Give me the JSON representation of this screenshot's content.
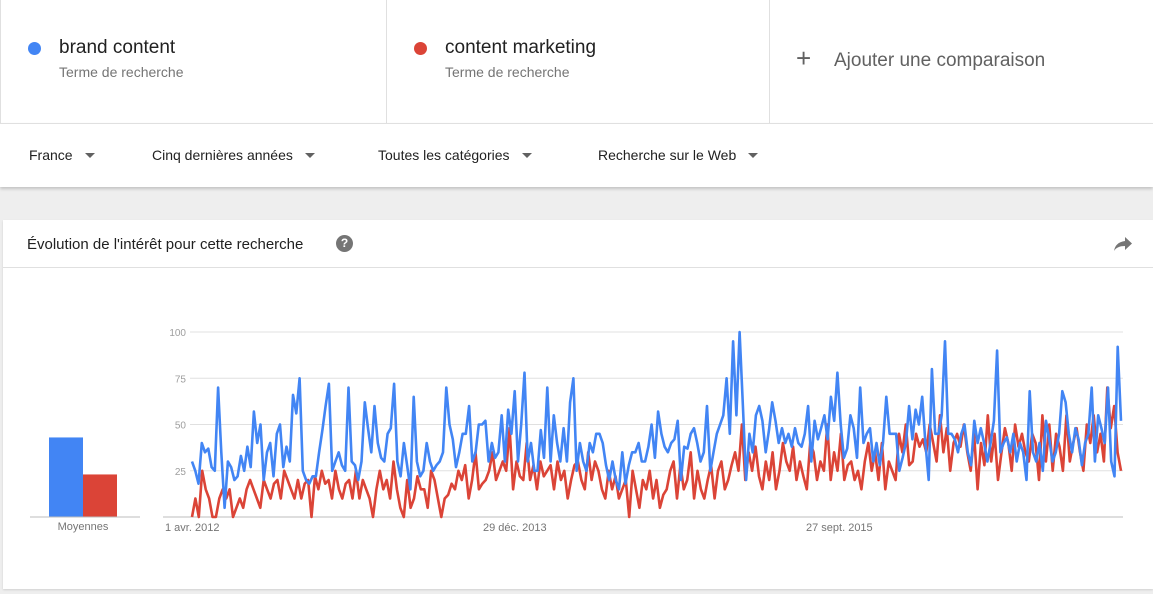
{
  "terms": [
    {
      "name": "brand content",
      "sub": "Terme de recherche",
      "color": "#4285f4"
    },
    {
      "name": "content marketing",
      "sub": "Terme de recherche",
      "color": "#db4437"
    }
  ],
  "add_comparison": "Ajouter une comparaison",
  "filters": {
    "region": "France",
    "period": "Cinq dernières années",
    "category": "Toutes les catégories",
    "search_type": "Recherche sur le Web"
  },
  "card": {
    "title": "Évolution de l'intérêt pour cette recherche",
    "help_icon": "help-icon",
    "share_icon": "share-icon"
  },
  "chart_data": {
    "type": "line",
    "ylim": [
      0,
      100
    ],
    "yticks": [
      "100",
      "75",
      "50",
      "25"
    ],
    "xticks": [
      "1 avr. 2012",
      "29 déc. 2013",
      "27 sept. 2015"
    ],
    "averages_label": "Moyennes",
    "averages": [
      {
        "name": "brand content",
        "value": 43,
        "color": "#4285f4"
      },
      {
        "name": "content marketing",
        "value": 23,
        "color": "#db4437"
      }
    ],
    "series": [
      {
        "name": "brand content",
        "color": "#4285f4",
        "values": [
          30,
          25,
          18,
          40,
          35,
          37,
          27,
          25,
          70,
          35,
          5,
          30,
          27,
          20,
          22,
          33,
          25,
          38,
          27,
          57,
          40,
          50,
          20,
          35,
          40,
          22,
          45,
          50,
          27,
          38,
          30,
          66,
          56,
          75,
          25,
          20,
          18,
          22,
          22,
          35,
          47,
          60,
          72,
          25,
          30,
          35,
          28,
          25,
          70,
          30,
          28,
          20,
          30,
          62,
          48,
          35,
          60,
          40,
          32,
          30,
          45,
          48,
          72,
          30,
          22,
          40,
          28,
          15,
          65,
          30,
          22,
          25,
          40,
          30,
          25,
          28,
          30,
          35,
          70,
          50,
          42,
          27,
          35,
          45,
          45,
          60,
          30,
          35,
          50,
          50,
          52,
          30,
          40,
          32,
          35,
          55,
          30,
          58,
          45,
          68,
          30,
          50,
          78,
          30,
          40,
          25,
          25,
          47,
          32,
          70,
          30,
          55,
          40,
          30,
          48,
          30,
          62,
          75,
          25,
          40,
          30,
          25,
          40,
          35,
          45,
          45,
          40,
          28,
          20,
          30,
          20,
          15,
          35,
          18,
          28,
          35,
          35,
          40,
          30,
          30,
          38,
          50,
          32,
          57,
          45,
          38,
          35,
          40,
          42,
          52,
          20,
          38,
          37,
          45,
          48,
          40,
          30,
          35,
          60,
          25,
          35,
          45,
          50,
          55,
          75,
          45,
          95,
          55,
          100,
          60,
          20,
          45,
          35,
          55,
          60,
          52,
          35,
          47,
          62,
          52,
          40,
          48,
          40,
          45,
          38,
          48,
          40,
          38,
          45,
          60,
          30,
          52,
          42,
          48,
          55,
          42,
          65,
          52,
          78,
          50,
          32,
          37,
          55,
          48,
          32,
          70,
          40,
          45,
          48,
          30,
          40,
          28,
          40,
          65,
          45,
          45,
          45,
          25,
          32,
          40,
          60,
          42,
          58,
          50,
          65,
          40,
          20,
          80,
          45,
          45,
          55,
          95,
          45,
          45,
          42,
          35,
          45,
          50,
          35,
          28,
          52,
          40,
          48,
          40,
          30,
          40,
          52,
          90,
          35,
          40,
          43,
          35,
          45,
          30,
          40,
          35,
          20,
          68,
          35,
          30,
          40,
          25,
          52,
          42,
          30,
          35,
          45,
          68,
          62,
          45,
          35,
          48,
          42,
          28,
          40,
          45,
          70,
          30,
          55,
          48,
          40,
          70,
          30,
          22,
          92,
          52
        ]
      },
      {
        "name": "content marketing",
        "color": "#db4437",
        "values": [
          0,
          10,
          0,
          25,
          15,
          10,
          0,
          0,
          10,
          15,
          10,
          15,
          0,
          5,
          10,
          5,
          15,
          20,
          15,
          10,
          5,
          20,
          15,
          10,
          18,
          20,
          10,
          25,
          20,
          15,
          10,
          20,
          10,
          18,
          20,
          0,
          22,
          15,
          25,
          18,
          20,
          10,
          25,
          15,
          10,
          18,
          20,
          10,
          25,
          10,
          20,
          15,
          10,
          0,
          15,
          25,
          15,
          20,
          10,
          30,
          15,
          5,
          0,
          20,
          5,
          10,
          22,
          15,
          15,
          5,
          25,
          20,
          10,
          0,
          10,
          12,
          18,
          15,
          25,
          20,
          28,
          10,
          20,
          35,
          15,
          18,
          20,
          25,
          35,
          20,
          25,
          30,
          25,
          48,
          15,
          30,
          22,
          20,
          40,
          20,
          28,
          15,
          30,
          22,
          25,
          28,
          15,
          30,
          20,
          25,
          10,
          20,
          28,
          30,
          20,
          15,
          35,
          20,
          30,
          25,
          15,
          10,
          25,
          15,
          22,
          10,
          15,
          20,
          0,
          25,
          15,
          5,
          20,
          15,
          25,
          10,
          20,
          5,
          12,
          15,
          25,
          30,
          10,
          28,
          15,
          20,
          35,
          10,
          25,
          15,
          10,
          20,
          28,
          10,
          25,
          30,
          15,
          20,
          28,
          35,
          25,
          50,
          20,
          35,
          25,
          38,
          22,
          15,
          30,
          20,
          35,
          15,
          25,
          40,
          30,
          25,
          38,
          20,
          30,
          22,
          15,
          40,
          35,
          20,
          30,
          25,
          50,
          20,
          35,
          25,
          45,
          20,
          28,
          30,
          20,
          25,
          15,
          30,
          40,
          25,
          35,
          20,
          40,
          15,
          30,
          25,
          20,
          45,
          35,
          50,
          28,
          30,
          45,
          38,
          42,
          35,
          50,
          40,
          30,
          55,
          35,
          48,
          25,
          40,
          45,
          38,
          50,
          35,
          25,
          45,
          15,
          40,
          28,
          55,
          30,
          45,
          20,
          35,
          48,
          40,
          25,
          50,
          38,
          45,
          35,
          30,
          45,
          40,
          20,
          55,
          30,
          50,
          25,
          45,
          38,
          25,
          55,
          30,
          40,
          48,
          35,
          25,
          50,
          40,
          55,
          35,
          45,
          30,
          70,
          48,
          60,
          35,
          25
        ]
      }
    ]
  }
}
